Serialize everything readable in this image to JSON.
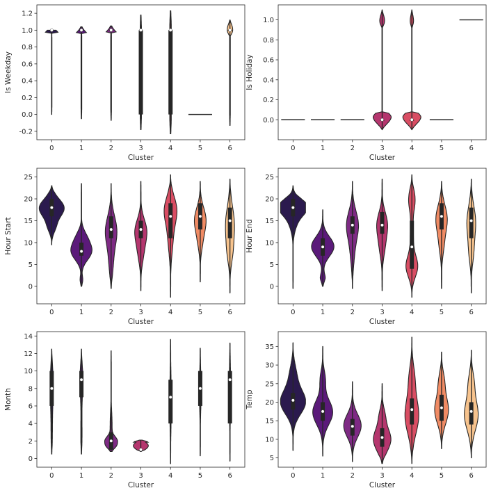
{
  "chart_data": [
    {
      "type": "violin",
      "xlabel": "Cluster",
      "ylabel": "Is Weekday",
      "categories": [
        "0",
        "1",
        "2",
        "3",
        "4",
        "5",
        "6"
      ],
      "ylim": [
        -0.3,
        1.3
      ],
      "yticks": [
        "-0.2",
        "0.0",
        "0.2",
        "0.4",
        "0.6",
        "0.8",
        "1.0",
        "1.2"
      ],
      "series": [
        {
          "cluster": "0",
          "min": 0.0,
          "max": 1.0,
          "q1": 1.0,
          "median": 1.0,
          "q3": 1.0
        },
        {
          "cluster": "1",
          "min": -0.05,
          "max": 1.04,
          "q1": 1.0,
          "median": 1.0,
          "q3": 1.0
        },
        {
          "cluster": "2",
          "min": -0.07,
          "max": 1.05,
          "q1": 1.0,
          "median": 1.0,
          "q3": 1.0
        },
        {
          "cluster": "3",
          "min": -0.18,
          "max": 1.18,
          "q1": 0.0,
          "median": 1.0,
          "q3": 1.0
        },
        {
          "cluster": "4",
          "min": -0.23,
          "max": 1.23,
          "q1": 0.0,
          "median": 1.0,
          "q3": 1.0
        },
        {
          "cluster": "5",
          "min": 0.0,
          "max": 0.0,
          "q1": 0.0,
          "median": 0.0,
          "q3": 0.0
        },
        {
          "cluster": "6",
          "min": -0.13,
          "max": 1.12,
          "q1": 1.0,
          "median": 1.0,
          "q3": 1.0
        }
      ]
    },
    {
      "type": "violin",
      "xlabel": "Cluster",
      "ylabel": "Is Holiday",
      "categories": [
        "0",
        "1",
        "2",
        "3",
        "4",
        "5",
        "6"
      ],
      "ylim": [
        -0.2,
        1.15
      ],
      "yticks": [
        "0.0",
        "0.2",
        "0.4",
        "0.6",
        "0.8",
        "1.0"
      ],
      "series": [
        {
          "cluster": "0",
          "min": 0.0,
          "max": 0.0,
          "q1": 0.0,
          "median": 0.0,
          "q3": 0.0
        },
        {
          "cluster": "1",
          "min": 0.0,
          "max": 0.0,
          "q1": 0.0,
          "median": 0.0,
          "q3": 0.0
        },
        {
          "cluster": "2",
          "min": 0.0,
          "max": 0.0,
          "q1": 0.0,
          "median": 0.0,
          "q3": 0.0
        },
        {
          "cluster": "3",
          "min": -0.1,
          "max": 1.1,
          "q1": 0.0,
          "median": 0.0,
          "q3": 0.0
        },
        {
          "cluster": "4",
          "min": -0.1,
          "max": 1.1,
          "q1": 0.0,
          "median": 0.0,
          "q3": 0.0
        },
        {
          "cluster": "5",
          "min": 0.0,
          "max": 0.0,
          "q1": 0.0,
          "median": 0.0,
          "q3": 0.0
        },
        {
          "cluster": "6",
          "min": 1.0,
          "max": 1.0,
          "q1": 1.0,
          "median": 1.0,
          "q3": 1.0
        }
      ]
    },
    {
      "type": "violin",
      "xlabel": "Cluster",
      "ylabel": "Hour Start",
      "categories": [
        "0",
        "1",
        "2",
        "3",
        "4",
        "5",
        "6"
      ],
      "ylim": [
        -4,
        27
      ],
      "yticks": [
        "0",
        "5",
        "10",
        "15",
        "20",
        "25"
      ],
      "series": [
        {
          "cluster": "0",
          "min": 9.5,
          "max": 23,
          "q1": 16,
          "median": 18,
          "q3": 20
        },
        {
          "cluster": "1",
          "min": 0,
          "max": 23.5,
          "q1": 7,
          "median": 8,
          "q3": 10
        },
        {
          "cluster": "2",
          "min": -0.5,
          "max": 23.5,
          "q1": 11,
          "median": 13,
          "q3": 16
        },
        {
          "cluster": "3",
          "min": -1,
          "max": 24,
          "q1": 11,
          "median": 13,
          "q3": 15
        },
        {
          "cluster": "4",
          "min": -2.5,
          "max": 25.5,
          "q1": 11,
          "median": 16,
          "q3": 19
        },
        {
          "cluster": "5",
          "min": 1,
          "max": 24,
          "q1": 13,
          "median": 16,
          "q3": 19
        },
        {
          "cluster": "6",
          "min": -1.5,
          "max": 24.5,
          "q1": 11,
          "median": 15,
          "q3": 18
        }
      ]
    },
    {
      "type": "violin",
      "xlabel": "Cluster",
      "ylabel": "Hour End",
      "categories": [
        "0",
        "1",
        "2",
        "3",
        "4",
        "5",
        "6"
      ],
      "ylim": [
        -4,
        27
      ],
      "yticks": [
        "0",
        "5",
        "10",
        "15",
        "20",
        "25"
      ],
      "series": [
        {
          "cluster": "0",
          "min": -0.5,
          "max": 23,
          "q1": 16,
          "median": 18,
          "q3": 20
        },
        {
          "cluster": "1",
          "min": 0,
          "max": 17.5,
          "q1": 7,
          "median": 9,
          "q3": 11
        },
        {
          "cluster": "2",
          "min": -0.5,
          "max": 24,
          "q1": 12,
          "median": 14,
          "q3": 16
        },
        {
          "cluster": "3",
          "min": -1,
          "max": 24.5,
          "q1": 12,
          "median": 14,
          "q3": 17
        },
        {
          "cluster": "4",
          "min": -2.5,
          "max": 25.5,
          "q1": 4,
          "median": 9,
          "q3": 15
        },
        {
          "cluster": "5",
          "min": -0.5,
          "max": 24,
          "q1": 13,
          "median": 16,
          "q3": 19
        },
        {
          "cluster": "6",
          "min": -1.5,
          "max": 24.5,
          "q1": 11,
          "median": 15,
          "q3": 18
        }
      ]
    },
    {
      "type": "violin",
      "xlabel": "Cluster",
      "ylabel": "Month",
      "categories": [
        "0",
        "1",
        "2",
        "3",
        "4",
        "5",
        "6"
      ],
      "ylim": [
        -1,
        14.5
      ],
      "yticks": [
        "0",
        "2",
        "4",
        "6",
        "8",
        "10",
        "12",
        "14"
      ],
      "series": [
        {
          "cluster": "0",
          "min": 0.5,
          "max": 12.5,
          "q1": 6,
          "median": 8,
          "q3": 10
        },
        {
          "cluster": "1",
          "min": 0.5,
          "max": 12.5,
          "q1": 7,
          "median": 9,
          "q3": 10
        },
        {
          "cluster": "2",
          "min": 0.8,
          "max": 12.3,
          "q1": 1,
          "median": 2,
          "q3": 3
        },
        {
          "cluster": "3",
          "min": 0.8,
          "max": 2.1,
          "q1": 1,
          "median": 1,
          "q3": 1
        },
        {
          "cluster": "4",
          "min": -0.6,
          "max": 13.6,
          "q1": 4,
          "median": 7,
          "q3": 9
        },
        {
          "cluster": "5",
          "min": 0.3,
          "max": 12.6,
          "q1": 6,
          "median": 8,
          "q3": 10
        },
        {
          "cluster": "6",
          "min": -0.3,
          "max": 13.2,
          "q1": 4,
          "median": 9,
          "q3": 10
        }
      ]
    },
    {
      "type": "violin",
      "xlabel": "Cluster",
      "ylabel": "Temp",
      "categories": [
        "0",
        "1",
        "2",
        "3",
        "4",
        "5",
        "6"
      ],
      "ylim": [
        2.5,
        39
      ],
      "yticks": [
        "5",
        "10",
        "15",
        "20",
        "25",
        "30",
        "35"
      ],
      "series": [
        {
          "cluster": "0",
          "min": 7,
          "max": 36,
          "q1": 18,
          "median": 20.5,
          "q3": 22.5
        },
        {
          "cluster": "1",
          "min": 5.5,
          "max": 35,
          "q1": 15,
          "median": 17.5,
          "q3": 20
        },
        {
          "cluster": "2",
          "min": 4,
          "max": 25.5,
          "q1": 11,
          "median": 13.5,
          "q3": 15.5
        },
        {
          "cluster": "3",
          "min": 3.5,
          "max": 25,
          "q1": 8,
          "median": 10.5,
          "q3": 13
        },
        {
          "cluster": "4",
          "min": 3.5,
          "max": 37.5,
          "q1": 14,
          "median": 18,
          "q3": 21
        },
        {
          "cluster": "5",
          "min": 7.5,
          "max": 33.5,
          "q1": 15,
          "median": 18.5,
          "q3": 22
        },
        {
          "cluster": "6",
          "min": 5,
          "max": 34,
          "q1": 14,
          "median": 17.5,
          "q3": 20
        }
      ]
    }
  ],
  "palette": [
    "#2b1a4e",
    "#5b1a7a",
    "#7e2a84",
    "#b5366e",
    "#d94d63",
    "#f08b64",
    "#f7c38d"
  ]
}
